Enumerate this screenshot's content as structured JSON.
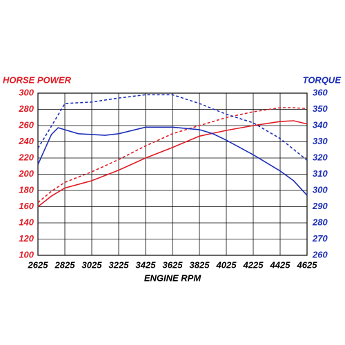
{
  "chart_data": {
    "type": "line",
    "y_label": "HORSE POWER",
    "y2_label": "TORQUE",
    "x_label": "ENGINE RPM",
    "xlim": [
      2625,
      4625
    ],
    "xticks": [
      2625,
      2825,
      3025,
      3225,
      3425,
      3625,
      3825,
      4025,
      4225,
      4425,
      4625
    ],
    "ylim": [
      100,
      300
    ],
    "yticks": [
      100,
      120,
      140,
      160,
      180,
      200,
      220,
      240,
      260,
      280,
      300
    ],
    "y2lim": [
      260,
      360
    ],
    "y2ticks": [
      260,
      270,
      280,
      290,
      300,
      310,
      320,
      330,
      340,
      350,
      360
    ],
    "y_color": "#e01b24",
    "y2_color": "#1c2fb8",
    "grid": true,
    "series": [
      {
        "color": "#e01b24",
        "dash": false,
        "axis": "y",
        "x": [
          2625,
          2725,
          2825,
          3025,
          3225,
          3425,
          3625,
          3825,
          4025,
          4225,
          4425,
          4525,
          4625
        ],
        "values": [
          160,
          173,
          183,
          192,
          205,
          220,
          233,
          247,
          254,
          260,
          265,
          266,
          262
        ]
      },
      {
        "color": "#e01b24",
        "dash": true,
        "axis": "y",
        "x": [
          2625,
          2725,
          2825,
          3025,
          3225,
          3425,
          3625,
          3825,
          4025,
          4225,
          4425,
          4525,
          4625
        ],
        "values": [
          165,
          179,
          190,
          203,
          218,
          235,
          250,
          260,
          270,
          277,
          282,
          282,
          281
        ]
      },
      {
        "color": "#1c2fb8",
        "dash": false,
        "axis": "y2",
        "x": [
          2625,
          2725,
          2775,
          2925,
          3125,
          3225,
          3425,
          3625,
          3825,
          3925,
          4025,
          4225,
          4425,
          4525,
          4625
        ],
        "values": [
          316,
          334.5,
          338.7,
          335,
          334,
          335,
          339,
          339,
          337.5,
          335,
          331,
          322,
          312,
          306,
          297
        ]
      },
      {
        "color": "#1c2fb8",
        "dash": true,
        "axis": "y2",
        "x": [
          2625,
          2725,
          2825,
          3025,
          3225,
          3425,
          3625,
          3825,
          4025,
          4225,
          4425,
          4625
        ],
        "values": [
          326,
          339.6,
          353.6,
          354.5,
          357,
          359,
          359,
          353.6,
          347,
          341.7,
          332,
          318.7
        ]
      }
    ]
  }
}
